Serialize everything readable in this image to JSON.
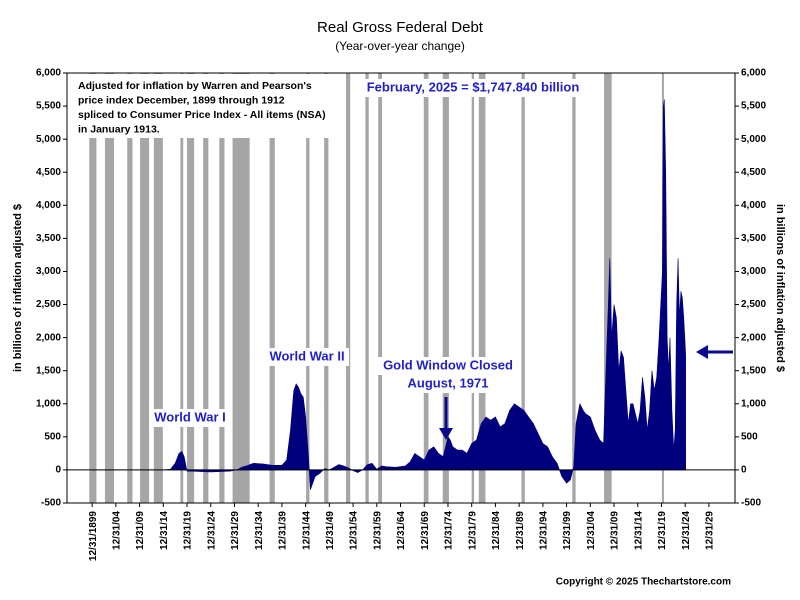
{
  "chart_data": {
    "type": "area",
    "title": "Real Gross Federal Debt",
    "subtitle": "(Year-over-year change)",
    "ylabel": "in billions of inflation adjusted $",
    "note": [
      "Adjusted for inflation by Warren and Pearson's",
      "price index December, 1899 through 1912",
      "spliced to Consumer Price Index - All items (NSA)",
      "in January 1913."
    ],
    "annotations": [
      "February, 2025 = $1,747.840 billion",
      "World War I",
      "World War II",
      "Gold Window Closed",
      "August, 1971"
    ],
    "copyright": "Copyright © 2025 Thechartstore.com",
    "xlim": [
      1894.7,
      2035.5
    ],
    "xticks": [
      {
        "value": 1900,
        "label": "12/31/1899"
      },
      {
        "value": 1905,
        "label": "12/31/04"
      },
      {
        "value": 1910,
        "label": "12/31/09"
      },
      {
        "value": 1915,
        "label": "12/31/14"
      },
      {
        "value": 1920,
        "label": "12/31/19"
      },
      {
        "value": 1925,
        "label": "12/31/24"
      },
      {
        "value": 1930,
        "label": "12/31/29"
      },
      {
        "value": 1935,
        "label": "12/31/34"
      },
      {
        "value": 1940,
        "label": "12/31/39"
      },
      {
        "value": 1945,
        "label": "12/31/44"
      },
      {
        "value": 1950,
        "label": "12/31/49"
      },
      {
        "value": 1955,
        "label": "12/31/54"
      },
      {
        "value": 1960,
        "label": "12/31/59"
      },
      {
        "value": 1965,
        "label": "12/31/64"
      },
      {
        "value": 1970,
        "label": "12/31/69"
      },
      {
        "value": 1975,
        "label": "12/31/74"
      },
      {
        "value": 1980,
        "label": "12/31/79"
      },
      {
        "value": 1985,
        "label": "12/31/84"
      },
      {
        "value": 1990,
        "label": "12/31/89"
      },
      {
        "value": 1995,
        "label": "12/31/94"
      },
      {
        "value": 2000,
        "label": "12/31/99"
      },
      {
        "value": 2005,
        "label": "12/31/04"
      },
      {
        "value": 2010,
        "label": "12/31/09"
      },
      {
        "value": 2015,
        "label": "12/31/14"
      },
      {
        "value": 2020,
        "label": "12/31/19"
      },
      {
        "value": 2025,
        "label": "12/31/24"
      },
      {
        "value": 2030,
        "label": "12/31/29"
      }
    ],
    "ylim": [
      -500,
      6000
    ],
    "yticks": [
      {
        "value": -500,
        "label": "-500"
      },
      0,
      500,
      {
        "value": 1000,
        "label": "1,000"
      },
      {
        "value": 1500,
        "label": "1,500"
      },
      {
        "value": 2000,
        "label": "2,000"
      },
      {
        "value": 2500,
        "label": "2,500"
      },
      {
        "value": 3000,
        "label": "3,000"
      },
      {
        "value": 3500,
        "label": "3,500"
      },
      {
        "value": 4000,
        "label": "4,000"
      },
      {
        "value": 4500,
        "label": "4,500"
      },
      {
        "value": 5000,
        "label": "5,000"
      },
      {
        "value": 5500,
        "label": "5,500"
      },
      {
        "value": 6000,
        "label": "6,000"
      }
    ],
    "recession_color": "#a6a6a6",
    "recessions": [
      [
        1899.4,
        1900.9
      ],
      [
        1902.7,
        1904.6
      ],
      [
        1907.4,
        1908.5
      ],
      [
        1910.1,
        1912.0
      ],
      [
        1913.0,
        1914.9
      ],
      [
        1918.6,
        1919.2
      ],
      [
        1920.0,
        1921.5
      ],
      [
        1923.4,
        1924.5
      ],
      [
        1926.8,
        1927.9
      ],
      [
        1929.6,
        1933.2
      ],
      [
        1937.4,
        1938.5
      ],
      [
        1945.1,
        1945.8
      ],
      [
        1948.9,
        1949.8
      ],
      [
        1953.5,
        1954.4
      ],
      [
        1957.6,
        1958.3
      ],
      [
        1960.3,
        1961.1
      ],
      [
        1969.9,
        1970.9
      ],
      [
        1973.9,
        1975.2
      ],
      [
        1980.0,
        1980.5
      ],
      [
        1981.5,
        1982.9
      ],
      [
        1990.5,
        1991.2
      ],
      [
        2001.2,
        2001.9
      ],
      [
        2007.9,
        2009.5
      ],
      [
        2020.1,
        2020.3
      ]
    ],
    "series": [
      {
        "color": "#00007f",
        "x": [
          1900,
          1905,
          1910,
          1915,
          1916.5,
          1917.5,
          1918.3,
          1918.9,
          1919.4,
          1920,
          1921,
          1925,
          1929,
          1930.5,
          1931.5,
          1932.5,
          1934,
          1936,
          1938,
          1940,
          1941,
          1941.8,
          1942.5,
          1943,
          1943.5,
          1944,
          1944.5,
          1945,
          1945.6,
          1946,
          1946.5,
          1947,
          1948,
          1949,
          1950,
          1951,
          1952,
          1953,
          1954,
          1955,
          1956,
          1957,
          1958,
          1959,
          1960,
          1961,
          1962,
          1964,
          1966,
          1967,
          1968,
          1969,
          1970,
          1971,
          1972,
          1973,
          1974,
          1975,
          1975.5,
          1976,
          1977,
          1978,
          1979,
          1980,
          1981,
          1982,
          1983,
          1984,
          1985,
          1986,
          1987,
          1988,
          1989,
          1990,
          1991,
          1992,
          1993,
          1994,
          1995,
          1996,
          1997,
          1998,
          1999,
          2000,
          2000.8,
          2001.5,
          2002,
          2002.8,
          2003.5,
          2004,
          2005,
          2006,
          2007,
          2007.8,
          2008.3,
          2008.8,
          2009.1,
          2009.5,
          2010,
          2010.5,
          2011,
          2011.5,
          2012,
          2012.5,
          2013,
          2013.5,
          2014,
          2015,
          2015.5,
          2016,
          2016.5,
          2017,
          2017.5,
          2018,
          2018.5,
          2019,
          2019.5,
          2020.2,
          2020.4,
          2020.6,
          2020.9,
          2021.2,
          2021.5,
          2021.8,
          2022.2,
          2022.6,
          2022.9,
          2023.2,
          2023.5,
          2023.8,
          2024.1,
          2024.4,
          2024.7,
          2025.1
        ],
        "values": [
          0,
          0,
          0,
          0,
          10,
          100,
          250,
          280,
          200,
          -20,
          -20,
          -30,
          -20,
          0,
          40,
          60,
          100,
          90,
          70,
          70,
          150,
          600,
          1200,
          1300,
          1250,
          1150,
          1100,
          800,
          200,
          -300,
          -200,
          -100,
          -50,
          20,
          0,
          40,
          80,
          60,
          30,
          -10,
          -40,
          0,
          80,
          100,
          10,
          60,
          50,
          40,
          60,
          120,
          250,
          200,
          150,
          300,
          350,
          250,
          200,
          500,
          450,
          350,
          300,
          300,
          250,
          400,
          450,
          700,
          800,
          750,
          800,
          650,
          700,
          900,
          1000,
          950,
          900,
          800,
          700,
          550,
          400,
          350,
          200,
          100,
          -100,
          -200,
          -150,
          50,
          700,
          1000,
          900,
          850,
          800,
          600,
          450,
          400,
          1500,
          2500,
          3200,
          2000,
          2500,
          2300,
          1500,
          1800,
          1700,
          1200,
          700,
          1000,
          1000,
          700,
          900,
          1400,
          1100,
          600,
          900,
          1500,
          1200,
          1400,
          2000,
          3000,
          5500,
          5600,
          4500,
          2000,
          1500,
          2000,
          900,
          300,
          600,
          2500,
          3200,
          2300,
          2700,
          2600,
          2300,
          1747.84
        ]
      }
    ]
  }
}
